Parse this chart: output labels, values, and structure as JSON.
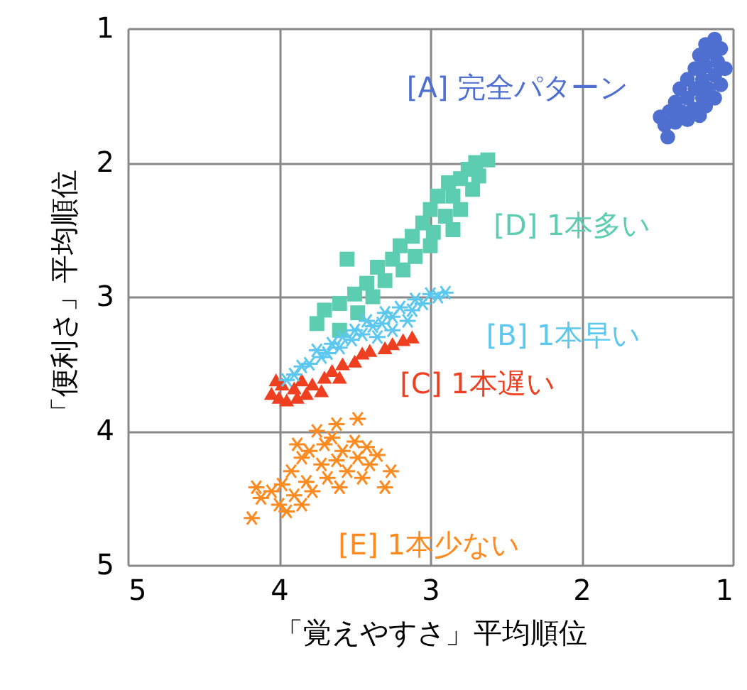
{
  "chart_data": {
    "type": "scatter",
    "xlabel": "「覚えやすさ」平均順位",
    "ylabel": "「便利さ」平均順位",
    "xlim": [
      5,
      1
    ],
    "xticks": [
      5,
      4,
      3,
      2,
      1
    ],
    "ylim": [
      5,
      1
    ],
    "yticks": [
      5,
      4,
      3,
      2,
      1
    ],
    "grid": true,
    "series": [
      {
        "name": "[A] 完全パターン",
        "color": "#4f6fd0",
        "marker": "circle",
        "x": [
          1.12,
          1.18,
          1.08,
          1.15,
          1.22,
          1.1,
          1.05,
          1.18,
          1.25,
          1.12,
          1.2,
          1.3,
          1.08,
          1.16,
          1.25,
          1.35,
          1.12,
          1.2,
          1.3,
          1.38,
          1.18,
          1.26,
          1.34,
          1.42,
          1.48,
          1.3,
          1.38,
          1.45,
          1.22,
          1.43
        ],
        "values": [
          1.08,
          1.12,
          1.15,
          1.18,
          1.2,
          1.25,
          1.3,
          1.28,
          1.3,
          1.35,
          1.38,
          1.38,
          1.42,
          1.45,
          1.45,
          1.45,
          1.52,
          1.52,
          1.52,
          1.55,
          1.58,
          1.6,
          1.62,
          1.62,
          1.66,
          1.68,
          1.7,
          1.72,
          1.65,
          1.81
        ]
      },
      {
        "name": "[E] 1本少ない",
        "color": "#ff8a20",
        "marker": "cross",
        "x": [
          4.18,
          4.12,
          4.05,
          4.15,
          4.0,
          3.98,
          3.92,
          3.9,
          3.85,
          3.82,
          3.8,
          3.78,
          3.72,
          3.7,
          3.68,
          3.65,
          3.62,
          3.6,
          3.58,
          3.55,
          3.5,
          3.48,
          3.45,
          3.42,
          3.4,
          3.35,
          3.26,
          3.3,
          3.48,
          3.62,
          3.75,
          3.88,
          3.95,
          3.85
        ],
        "values": [
          4.65,
          4.5,
          4.45,
          4.42,
          4.55,
          4.4,
          4.3,
          4.48,
          4.2,
          4.38,
          4.15,
          4.45,
          4.25,
          4.1,
          4.35,
          4.05,
          4.22,
          4.42,
          4.15,
          4.3,
          4.08,
          4.2,
          4.35,
          4.12,
          4.25,
          4.18,
          4.3,
          4.42,
          3.91,
          3.95,
          4.0,
          4.1,
          4.6,
          4.55
        ]
      },
      {
        "name": "[C] 1本遅い",
        "color": "#ee4020",
        "marker": "triangle",
        "x": [
          4.05,
          4.0,
          3.95,
          3.88,
          3.82,
          3.9,
          3.98,
          3.78,
          3.7,
          3.65,
          3.58,
          3.5,
          3.45,
          3.4,
          3.3,
          3.25,
          3.18,
          3.12,
          3.85,
          4.02,
          3.6,
          3.72
        ],
        "values": [
          3.72,
          3.75,
          3.77,
          3.75,
          3.72,
          3.68,
          3.65,
          3.65,
          3.6,
          3.55,
          3.5,
          3.48,
          3.42,
          3.4,
          3.38,
          3.35,
          3.32,
          3.3,
          3.62,
          3.62,
          3.6,
          3.7
        ]
      },
      {
        "name": "[D] 1本多い",
        "color": "#5ccdb0",
        "marker": "square",
        "x": [
          2.62,
          2.7,
          2.75,
          2.68,
          2.8,
          2.88,
          2.72,
          2.85,
          2.95,
          3.0,
          2.8,
          2.9,
          3.05,
          2.85,
          2.98,
          3.12,
          3.0,
          3.2,
          3.1,
          3.25,
          3.55,
          3.35,
          3.18,
          3.3,
          3.42,
          3.5,
          3.38,
          3.6,
          3.7,
          3.48,
          3.75,
          3.6
        ],
        "values": [
          1.98,
          2.0,
          2.05,
          2.1,
          2.12,
          2.15,
          2.2,
          2.25,
          2.25,
          2.35,
          2.35,
          2.4,
          2.45,
          2.5,
          2.52,
          2.55,
          2.62,
          2.62,
          2.7,
          2.72,
          2.72,
          2.78,
          2.8,
          2.88,
          2.9,
          2.98,
          3.0,
          3.05,
          3.1,
          3.12,
          3.2,
          3.25
        ]
      },
      {
        "name": "[B] 1本早い",
        "color": "#5cc8f0",
        "marker": "cross",
        "x": [
          2.9,
          2.95,
          3.0,
          3.05,
          3.1,
          3.12,
          3.2,
          3.25,
          3.3,
          3.32,
          3.38,
          3.42,
          3.45,
          3.5,
          3.52,
          3.58,
          3.6,
          3.65,
          3.68,
          3.72,
          3.75,
          3.8,
          3.85,
          3.9,
          3.95,
          3.35,
          3.25,
          3.15
        ],
        "values": [
          2.97,
          3.0,
          2.98,
          3.05,
          3.02,
          3.1,
          3.08,
          3.15,
          3.12,
          3.2,
          3.22,
          3.18,
          3.28,
          3.25,
          3.32,
          3.3,
          3.38,
          3.35,
          3.42,
          3.45,
          3.4,
          3.5,
          3.52,
          3.58,
          3.62,
          3.3,
          3.25,
          3.18
        ]
      }
    ]
  }
}
